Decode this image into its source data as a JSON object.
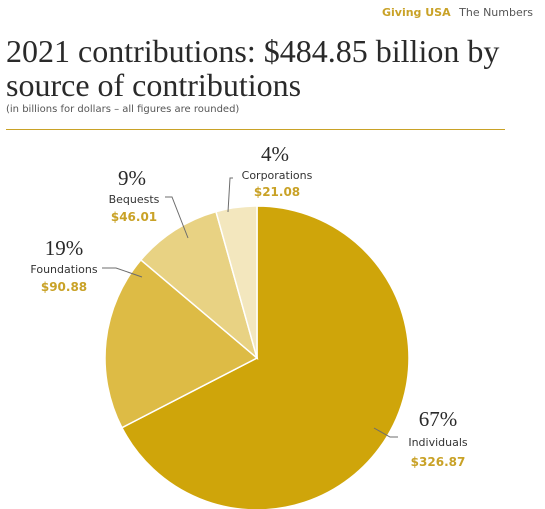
{
  "header": {
    "org": "Giving USA",
    "section": "The Numbers"
  },
  "title": "2021 contributions: $484.85 billion by source of contributions",
  "subtitle": "(in billions for dollars – all figures are rounded)",
  "colors": {
    "accent": "#c9a227"
  },
  "chart_data": {
    "type": "pie",
    "slices": [
      {
        "label": "Individuals",
        "percent": "67%",
        "amount": "$326.87",
        "value": 326.87,
        "color": "#cfa50a"
      },
      {
        "label": "Foundations",
        "percent": "19%",
        "amount": "$90.88",
        "value": 90.88,
        "color": "#ddbb45"
      },
      {
        "label": "Bequests",
        "percent": "9%",
        "amount": "$46.01",
        "value": 46.01,
        "color": "#e8d283"
      },
      {
        "label": "Corporations",
        "percent": "4%",
        "amount": "$21.08",
        "value": 21.08,
        "color": "#f3e7be"
      }
    ]
  }
}
